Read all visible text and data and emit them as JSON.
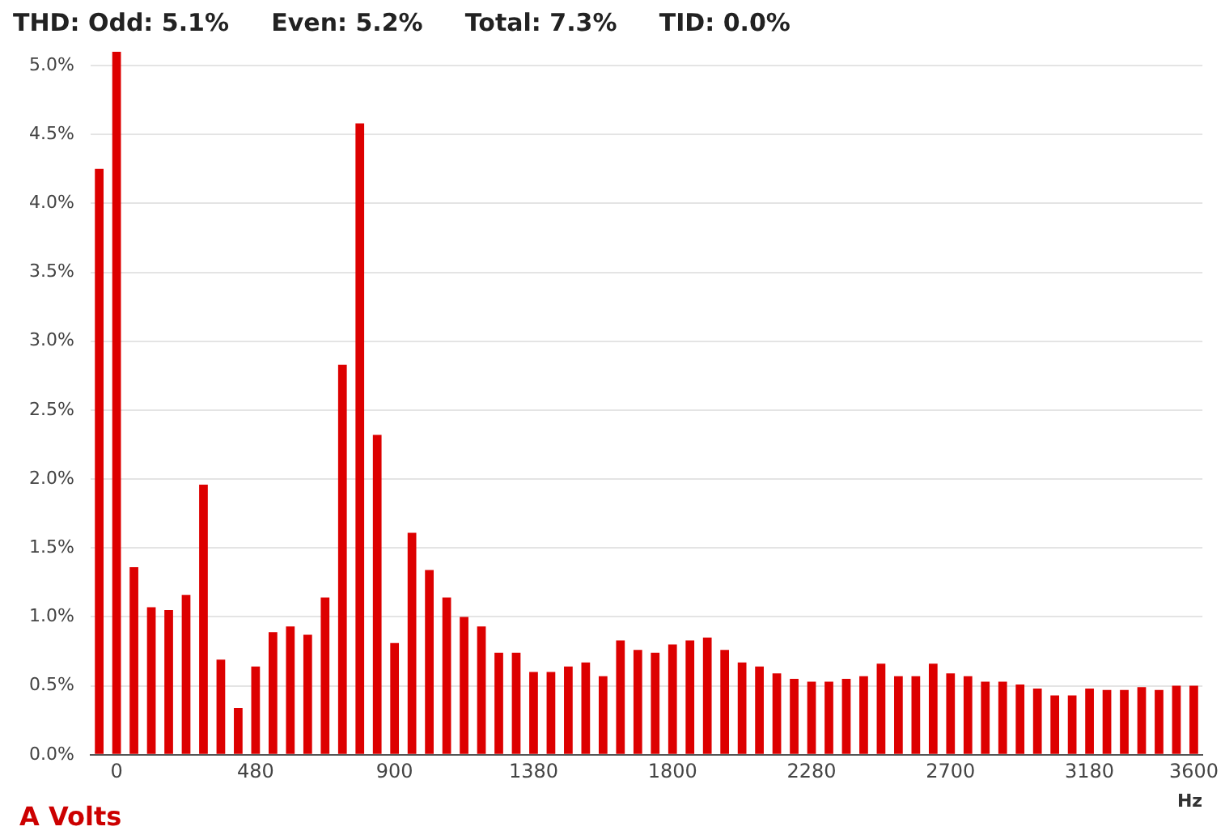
{
  "chart_data": {
    "type": "bar",
    "title": "THD: Odd: 5.1%     Even: 5.2%     Total: 7.3%     TID: 0.0%",
    "xlabel": "Hz",
    "annotations": [
      "A Volts"
    ],
    "categories": [
      null,
      "0",
      null,
      null,
      null,
      null,
      null,
      null,
      null,
      "480",
      null,
      null,
      null,
      null,
      null,
      null,
      null,
      "900",
      null,
      null,
      null,
      null,
      null,
      null,
      null,
      "1380",
      null,
      null,
      null,
      null,
      null,
      null,
      null,
      "1800",
      null,
      null,
      null,
      null,
      null,
      null,
      null,
      "2280",
      null,
      null,
      null,
      null,
      null,
      null,
      null,
      "2700",
      null,
      null,
      null,
      null,
      null,
      null,
      null,
      "3180",
      null,
      null,
      null,
      null,
      null,
      "3600"
    ],
    "values": [
      4.25,
      5.1,
      1.36,
      1.07,
      1.05,
      1.16,
      1.96,
      0.69,
      0.34,
      0.64,
      0.89,
      0.93,
      0.87,
      1.14,
      2.83,
      4.58,
      2.32,
      0.81,
      1.61,
      1.34,
      1.14,
      1.0,
      0.93,
      0.74,
      0.74,
      0.6,
      0.6,
      0.64,
      0.67,
      0.57,
      0.83,
      0.76,
      0.74,
      0.8,
      0.83,
      0.85,
      0.76,
      0.67,
      0.64,
      0.59,
      0.55,
      0.53,
      0.53,
      0.55,
      0.57,
      0.66,
      0.57,
      0.57,
      0.66,
      0.59,
      0.57,
      0.53,
      0.53,
      0.51,
      0.48,
      0.43,
      0.43,
      0.48,
      0.47,
      0.47,
      0.49,
      0.47,
      0.5,
      0.5
    ],
    "color": "#dd0000",
    "ylim": [
      0,
      5.1
    ],
    "yticks": [
      {
        "value": 0,
        "label": "0.0%"
      },
      {
        "value": 0.5,
        "label": "0.5%"
      },
      {
        "value": 1,
        "label": "1.0%"
      },
      {
        "value": 1.5,
        "label": "1.5%"
      },
      {
        "value": 2,
        "label": "2.0%"
      },
      {
        "value": 2.5,
        "label": "2.5%"
      },
      {
        "value": 3,
        "label": "3.0%"
      },
      {
        "value": 3.5,
        "label": "3.5%"
      },
      {
        "value": 4,
        "label": "4.0%"
      },
      {
        "value": 4.5,
        "label": "4.5%"
      },
      {
        "value": 5,
        "label": "5.0%"
      }
    ],
    "grid": "y",
    "legend": false
  }
}
